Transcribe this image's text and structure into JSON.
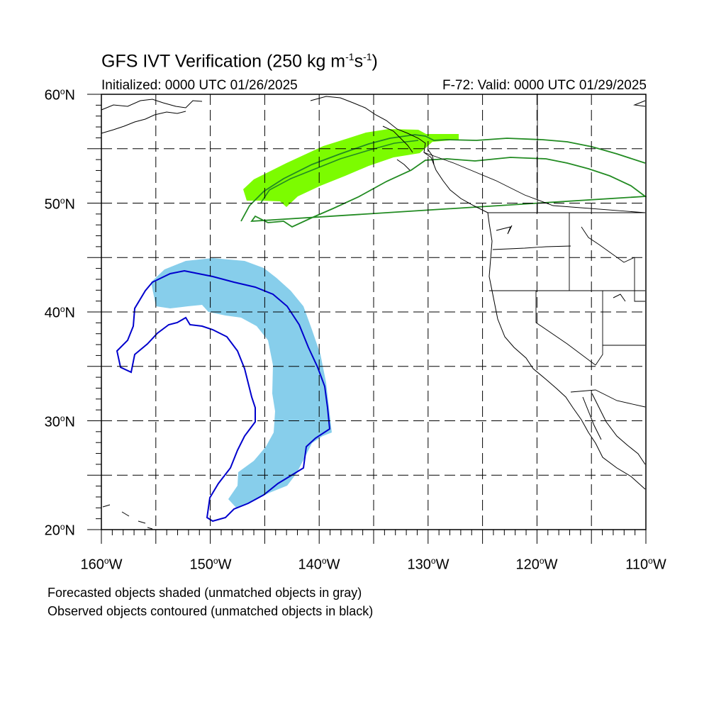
{
  "title": {
    "prefix": "GFS IVT Verification (250 kg m",
    "sup1": "-1",
    "mid": "s",
    "sup2": "-1",
    "suffix": ")"
  },
  "initialized": "Initialized: 0000 UTC 01/26/2025",
  "valid": "F-72: Valid: 0000 UTC 01/29/2025",
  "lat_labels": [
    "60",
    "50",
    "40",
    "30",
    "20"
  ],
  "lat_suffix": "N",
  "lon_labels": [
    "160",
    "150",
    "140",
    "130",
    "120",
    "110"
  ],
  "lon_suffix": "W",
  "degree_symbol": "o",
  "notes": {
    "line1": "Forecasted objects shaded (unmatched objects in gray)",
    "line2": "Observed objects contoured (unmatched objects in black)"
  },
  "colors": {
    "forecast_north": "#7cfc00",
    "observed_north": "#228b22",
    "forecast_south": "#87ceeb",
    "observed_south": "#0000cd",
    "coast": "#000000",
    "grid": "#000000"
  },
  "map": {
    "lon_range": [
      -160,
      -110
    ],
    "lat_range": [
      20,
      60
    ],
    "grid_spacing_deg": 5,
    "grid_style": "dashed"
  }
}
